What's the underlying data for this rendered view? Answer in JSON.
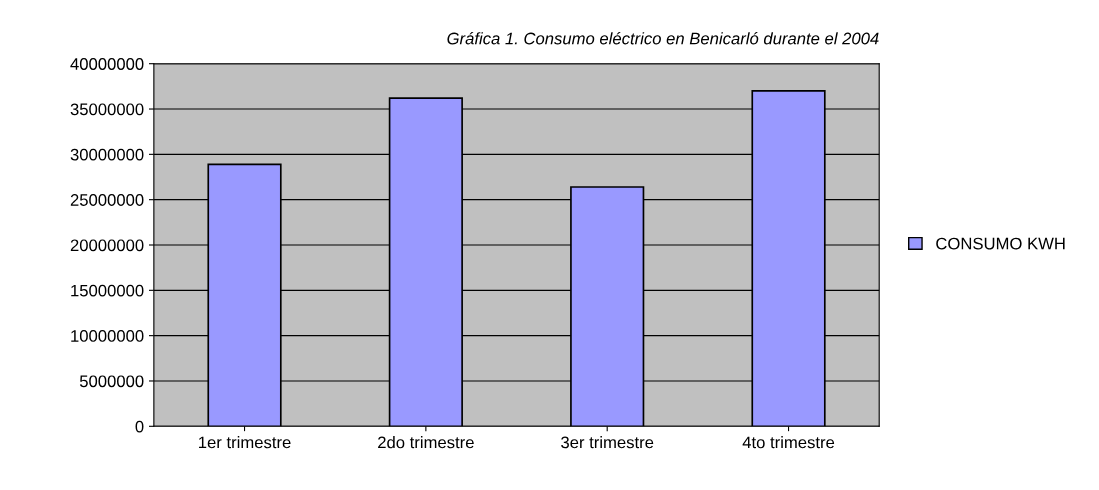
{
  "chart_data": {
    "type": "bar",
    "title": "Gráfica 1. Consumo eléctrico en Benicarló durante el 2004",
    "categories": [
      "1er trimestre",
      "2do trimestre",
      "3er trimestre",
      "4to trimestre"
    ],
    "series": [
      {
        "name": "CONSUMO KWH",
        "color": "#9999ff",
        "values": [
          28900000,
          36200000,
          26400000,
          37000000
        ]
      }
    ],
    "ylim": [
      0,
      40000000
    ],
    "yticks": [
      0,
      5000000,
      10000000,
      15000000,
      20000000,
      25000000,
      30000000,
      35000000,
      40000000
    ],
    "grid": "y",
    "legend": "right"
  }
}
